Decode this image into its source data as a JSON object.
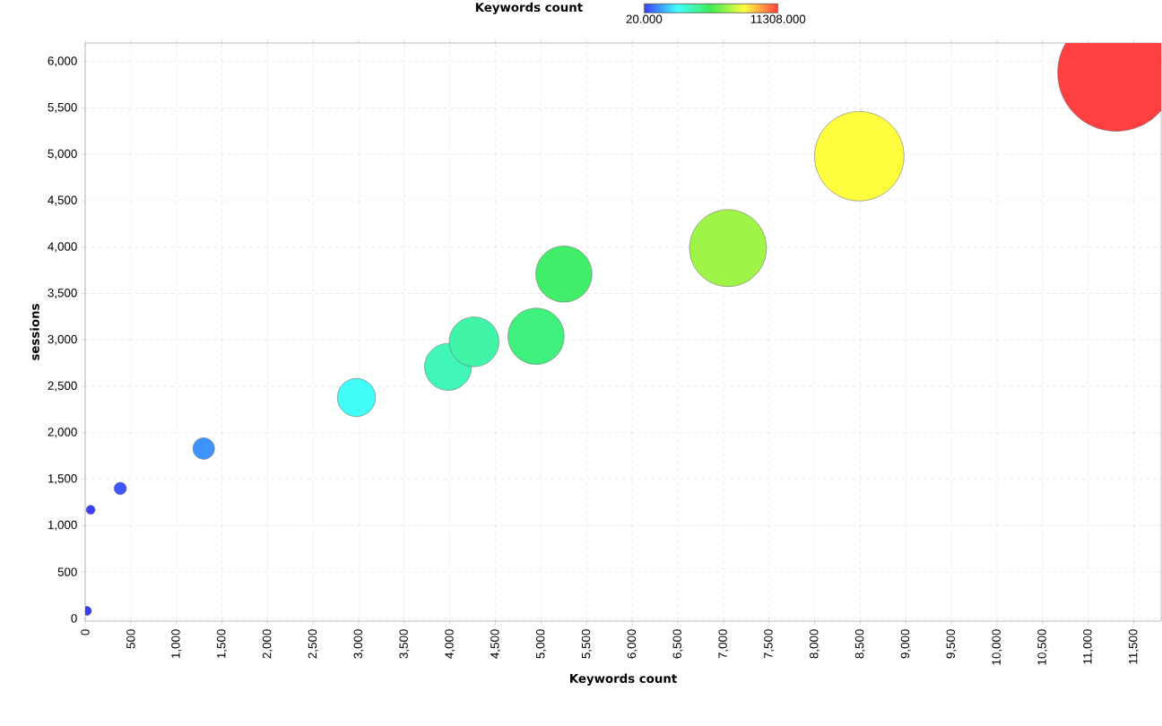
{
  "chart_data": {
    "type": "bubble",
    "xlabel": "Keywords count",
    "ylabel": "sessions",
    "clabel": "Keywords count",
    "x": [
      20,
      60,
      385,
      1300,
      2975,
      3980,
      4265,
      4945,
      5250,
      7050,
      8490,
      11308
    ],
    "values": [
      80,
      1170,
      1400,
      1830,
      2380,
      2710,
      2980,
      3040,
      3710,
      3990,
      4980,
      5880
    ],
    "sizes": [
      0.009,
      0.009,
      0.015,
      0.04,
      0.115,
      0.17,
      0.19,
      0.24,
      0.24,
      0.44,
      0.59,
      1
    ],
    "cvalues": [
      20,
      60,
      385,
      1300,
      2975,
      3980,
      4265,
      4945,
      5250,
      7050,
      8490,
      11308
    ],
    "clim": [
      20,
      11308
    ],
    "cticks": [
      {
        "value": 20,
        "label": "20.000"
      },
      {
        "value": 11308,
        "label": "11308.000"
      }
    ],
    "xlim": [
      0,
      11800
    ],
    "ylim": [
      -30,
      6200
    ],
    "xticks": [
      0,
      500,
      {
        "value": 1000,
        "label": "1,000"
      },
      {
        "value": 1500,
        "label": "1,500"
      },
      {
        "value": 2000,
        "label": "2,000"
      },
      {
        "value": 2500,
        "label": "2,500"
      },
      {
        "value": 3000,
        "label": "3,000"
      },
      {
        "value": 3500,
        "label": "3,500"
      },
      {
        "value": 4000,
        "label": "4,000"
      },
      {
        "value": 4500,
        "label": "4,500"
      },
      {
        "value": 5000,
        "label": "5,000"
      },
      {
        "value": 5500,
        "label": "5,500"
      },
      {
        "value": 6000,
        "label": "6,000"
      },
      {
        "value": 6500,
        "label": "6,500"
      },
      {
        "value": 7000,
        "label": "7,000"
      },
      {
        "value": 7500,
        "label": "7,500"
      },
      {
        "value": 8000,
        "label": "8,000"
      },
      {
        "value": 8500,
        "label": "8,500"
      },
      {
        "value": 9000,
        "label": "9,000"
      },
      {
        "value": 9500,
        "label": "9,500"
      },
      {
        "value": 10000,
        "label": "10,000"
      },
      {
        "value": 10500,
        "label": "10,500"
      },
      {
        "value": 11000,
        "label": "11,000"
      },
      {
        "value": 11500,
        "label": "11,500"
      }
    ],
    "yticks": [
      0,
      500,
      {
        "value": 1000,
        "label": "1,000"
      },
      {
        "value": 1500,
        "label": "1,500"
      },
      {
        "value": 2000,
        "label": "2,000"
      },
      {
        "value": 2500,
        "label": "2,500"
      },
      {
        "value": 3000,
        "label": "3,000"
      },
      {
        "value": 3500,
        "label": "3,500"
      },
      {
        "value": 4000,
        "label": "4,000"
      },
      {
        "value": 4500,
        "label": "4,500"
      },
      {
        "value": 5000,
        "label": "5,000"
      },
      {
        "value": 5500,
        "label": "5,500"
      },
      {
        "value": 6000,
        "label": "6,000"
      }
    ],
    "grid": true,
    "marker": "circle"
  }
}
